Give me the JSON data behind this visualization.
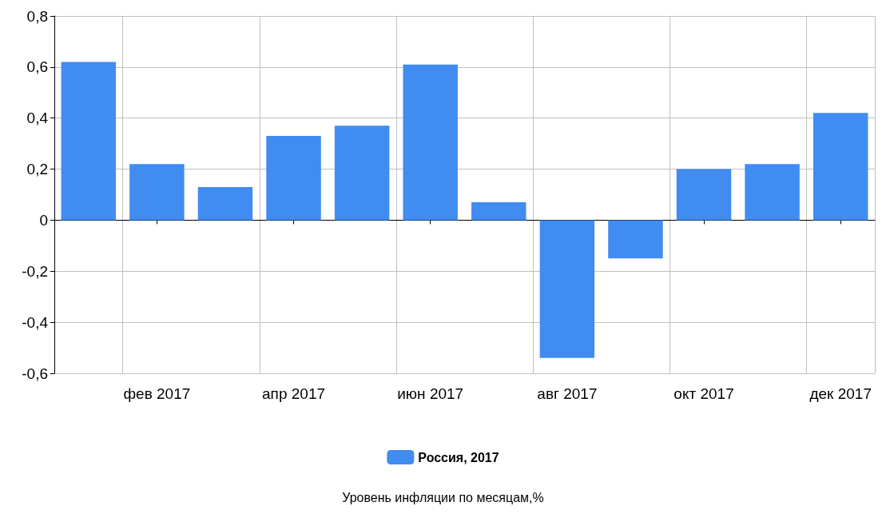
{
  "chart_data": {
    "type": "bar",
    "categories": [
      null,
      "фев 2017",
      null,
      "апр 2017",
      null,
      "июн 2017",
      null,
      "авг 2017",
      null,
      "окт 2017",
      null,
      "дек 2017"
    ],
    "series": [
      {
        "name": "Россия, 2017",
        "color": "#418cf0",
        "values": [
          0.62,
          0.22,
          0.13,
          0.33,
          0.37,
          0.61,
          0.07,
          -0.54,
          -0.15,
          0.2,
          0.22,
          0.42
        ]
      }
    ],
    "ylim": [
      -0.6,
      0.8
    ],
    "yticks": [
      {
        "value": -0.6,
        "label": "-0,6"
      },
      {
        "value": -0.4,
        "label": "-0,4"
      },
      {
        "value": -0.2,
        "label": "-0,2"
      },
      0,
      {
        "value": 0.2,
        "label": "0,2"
      },
      {
        "value": 0.4,
        "label": "0,4"
      },
      {
        "value": 0.6,
        "label": "0,6"
      },
      {
        "value": 0.8,
        "label": "0,8"
      }
    ],
    "grid": true,
    "legend": "bottom",
    "annotations": [
      "Уровень инфляции по месяцам,%"
    ]
  }
}
